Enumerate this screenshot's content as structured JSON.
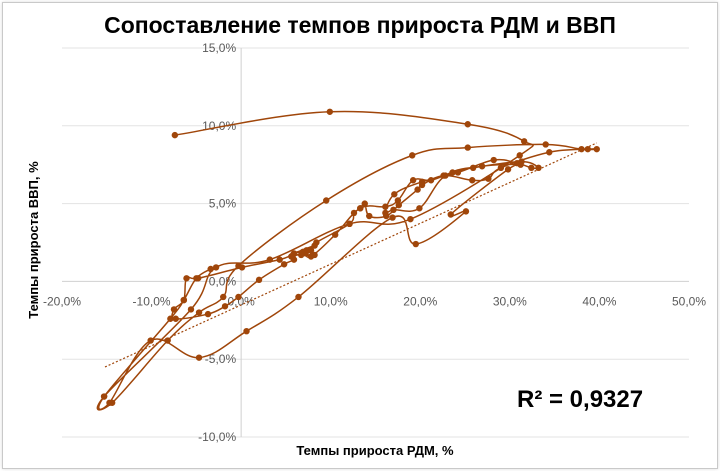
{
  "chart_data": {
    "type": "scatter",
    "title": "Сопоставление темпов прироста РДМ и ВВП",
    "xlabel": "Темпы прироста РДМ, %",
    "ylabel": "Темпы прироста ВВП, %",
    "xlim": [
      -20,
      50
    ],
    "ylim": [
      -10,
      15
    ],
    "x_ticks": [
      "-20,0%",
      "-10,0%",
      "0,0%",
      "10,0%",
      "20,0%",
      "30,0%",
      "40,0%",
      "50,0%"
    ],
    "y_ticks": [
      "-10,0%",
      "-5,0%",
      "0,0%",
      "5,0%",
      "10,0%",
      "15,0%"
    ],
    "grid": "horizontal",
    "line_style": "smooth connected points",
    "trendline": {
      "type": "linear",
      "r2_label": "R² = 0,9327",
      "x_start": -15.2,
      "y_start": -5.5,
      "x_end": 39.7,
      "y_end": 8.9
    },
    "series_color": "#a0460a",
    "points": [
      [
        -7.4,
        9.4
      ],
      [
        9.9,
        10.9
      ],
      [
        25.3,
        10.1
      ],
      [
        31.6,
        9.0
      ],
      [
        31.1,
        8.1
      ],
      [
        18.9,
        4.0
      ],
      [
        12.1,
        3.7
      ],
      [
        3.2,
        1.4
      ],
      [
        -2.8,
        0.9
      ],
      [
        -5.6,
        -1.8
      ],
      [
        -15.3,
        -7.4
      ],
      [
        -14.4,
        -7.8
      ],
      [
        -8.2,
        -3.8
      ],
      [
        -4.7,
        -2.0
      ],
      [
        -2.0,
        -1.0
      ],
      [
        -0.3,
        1.0
      ],
      [
        9.5,
        5.2
      ],
      [
        19.1,
        8.1
      ],
      [
        25.3,
        8.6
      ],
      [
        34.0,
        8.8
      ],
      [
        38.0,
        8.5
      ],
      [
        39.7,
        8.5
      ],
      [
        38.7,
        8.5
      ],
      [
        34.4,
        8.3
      ],
      [
        29.0,
        7.3
      ],
      [
        27.6,
        6.6
      ],
      [
        25.8,
        6.5
      ],
      [
        22.6,
        6.8
      ],
      [
        20.2,
        6.2
      ],
      [
        19.7,
        5.9
      ],
      [
        17.6,
        4.9
      ],
      [
        16.2,
        4.2
      ],
      [
        14.3,
        4.2
      ],
      [
        13.8,
        5.0
      ],
      [
        13.3,
        4.7
      ],
      [
        12.6,
        4.4
      ],
      [
        12.1,
        3.7
      ],
      [
        8.4,
        2.5
      ],
      [
        7.8,
        2.0
      ],
      [
        7.2,
        1.8
      ],
      [
        5.6,
        1.6
      ],
      [
        5.9,
        1.4
      ],
      [
        4.8,
        1.1
      ],
      [
        2.0,
        0.1
      ],
      [
        -0.3,
        -1.0
      ],
      [
        -1.8,
        -1.6
      ],
      [
        -3.7,
        -2.1
      ],
      [
        -7.3,
        -2.4
      ],
      [
        -7.5,
        -1.8
      ],
      [
        -6.4,
        -1.2
      ],
      [
        -6.1,
        0.2
      ],
      [
        -4.8,
        0.2
      ],
      [
        0.1,
        0.9
      ],
      [
        4.3,
        1.4
      ],
      [
        5.8,
        1.7
      ],
      [
        6.7,
        1.7
      ],
      [
        8.2,
        1.7
      ],
      [
        7.3,
        2.0
      ],
      [
        8.2,
        2.3
      ],
      [
        5.9,
        1.8
      ],
      [
        6.9,
        1.9
      ],
      [
        7.8,
        1.6
      ],
      [
        10.5,
        3.0
      ],
      [
        13.3,
        4.7
      ],
      [
        16.1,
        4.8
      ],
      [
        17.5,
        5.2
      ],
      [
        19.2,
        6.5
      ],
      [
        21.2,
        6.5
      ],
      [
        23.6,
        7.0
      ],
      [
        25.9,
        7.3
      ],
      [
        31.3,
        7.7
      ],
      [
        33.2,
        7.3
      ],
      [
        32.4,
        7.3
      ],
      [
        30.8,
        7.6
      ],
      [
        28.2,
        7.8
      ],
      [
        24.2,
        7.0
      ],
      [
        20.2,
        6.4
      ],
      [
        17.1,
        5.6
      ],
      [
        16.1,
        4.4
      ],
      [
        17.0,
        4.6
      ],
      [
        19.9,
        4.7
      ],
      [
        22.8,
        6.8
      ],
      [
        26.9,
        7.4
      ],
      [
        31.2,
        7.5
      ],
      [
        29.8,
        7.2
      ],
      [
        23.4,
        4.3
      ],
      [
        25.1,
        4.5
      ],
      [
        19.5,
        2.4
      ],
      [
        16.9,
        4.1
      ],
      [
        6.4,
        -1.0
      ],
      [
        0.6,
        -3.2
      ],
      [
        -4.7,
        -4.9
      ],
      [
        -10.1,
        -3.8
      ],
      [
        -14.7,
        -7.8
      ],
      [
        -15.3,
        -7.4
      ],
      [
        -7.9,
        -2.4
      ],
      [
        -6.4,
        -1.2
      ],
      [
        -5.0,
        0.2
      ],
      [
        -3.4,
        0.8
      ]
    ]
  }
}
